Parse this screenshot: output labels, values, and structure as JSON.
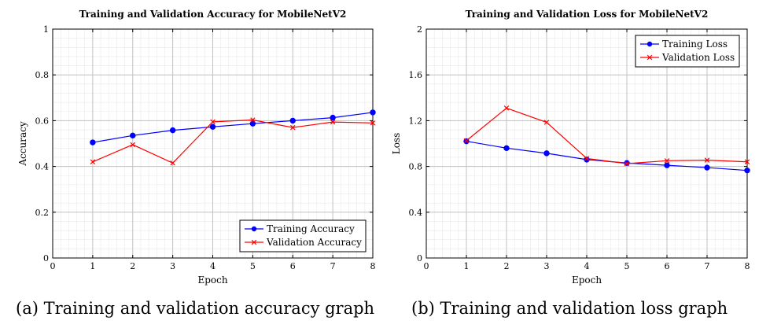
{
  "captions": [
    "(a) Training and validation accuracy graph",
    "(b) Training and validation loss graph"
  ],
  "chart_data": [
    {
      "type": "line",
      "title": "Training and Validation Accuracy for MobileNetV2",
      "xlabel": "Epoch",
      "ylabel": "Accuracy",
      "xlim": [
        0,
        8
      ],
      "ylim": [
        0,
        1
      ],
      "xticks": [
        "0",
        "1",
        "2",
        "3",
        "4",
        "5",
        "6",
        "7",
        "8"
      ],
      "yticks": [
        "0",
        "0.2",
        "0.4",
        "0.6",
        "0.8",
        "1"
      ],
      "grid": true,
      "legend_position": "bottom-right",
      "series": [
        {
          "name": "Training Accuracy",
          "color": "#0000ff",
          "marker": "circle",
          "x": [
            1,
            2,
            3,
            4,
            5,
            6,
            7,
            8
          ],
          "values": [
            0.505,
            0.535,
            0.558,
            0.573,
            0.587,
            0.6,
            0.613,
            0.636
          ]
        },
        {
          "name": "Validation Accuracy",
          "color": "#ff0000",
          "marker": "cross",
          "x": [
            1,
            2,
            3,
            4,
            5,
            6,
            7,
            8
          ],
          "values": [
            0.42,
            0.495,
            0.415,
            0.595,
            0.603,
            0.57,
            0.594,
            0.59
          ]
        }
      ]
    },
    {
      "type": "line",
      "title": "Training and Validation Loss for MobileNetV2",
      "xlabel": "Epoch",
      "ylabel": "Loss",
      "xlim": [
        0,
        8
      ],
      "ylim": [
        0,
        2
      ],
      "xticks": [
        "0",
        "1",
        "2",
        "3",
        "4",
        "5",
        "6",
        "7",
        "8"
      ],
      "yticks": [
        "0",
        "0.4",
        "0.8",
        "1.2",
        "1.6",
        "2"
      ],
      "grid": true,
      "legend_position": "top-right",
      "series": [
        {
          "name": "Training Loss",
          "color": "#0000ff",
          "marker": "circle",
          "x": [
            1,
            2,
            3,
            4,
            5,
            6,
            7,
            8
          ],
          "values": [
            1.02,
            0.96,
            0.915,
            0.86,
            0.83,
            0.81,
            0.79,
            0.765
          ]
        },
        {
          "name": "Validation Loss",
          "color": "#ff0000",
          "marker": "cross",
          "x": [
            1,
            2,
            3,
            4,
            5,
            6,
            7,
            8
          ],
          "values": [
            1.025,
            1.31,
            1.185,
            0.87,
            0.825,
            0.85,
            0.855,
            0.84
          ]
        }
      ]
    }
  ]
}
